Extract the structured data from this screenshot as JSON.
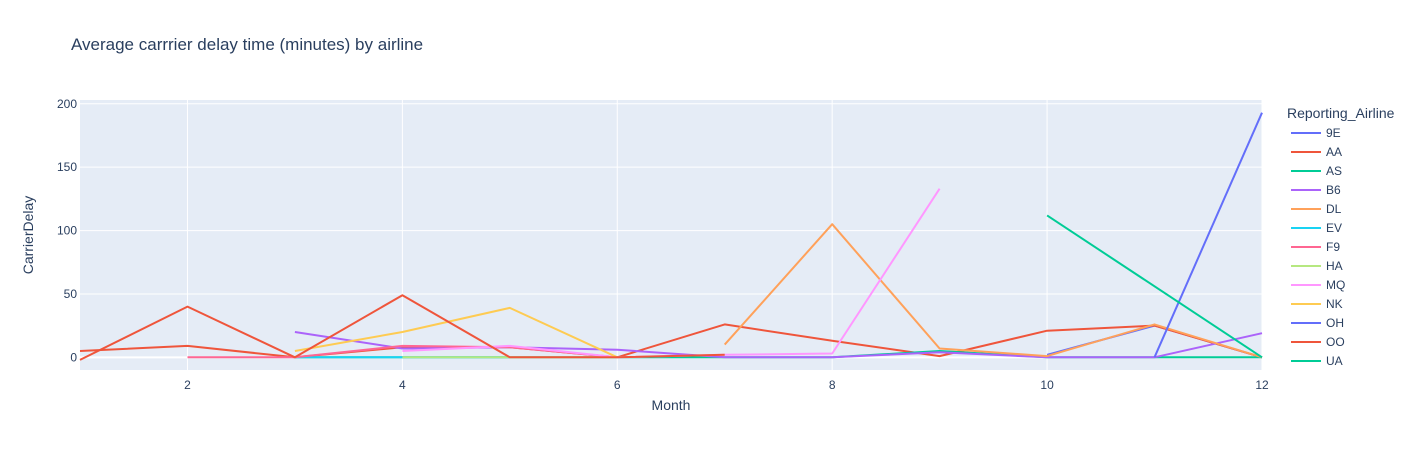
{
  "chart_data": {
    "type": "line",
    "title": "Average carrrier delay time (minutes) by airline",
    "xlabel": "Month",
    "ylabel": "CarrierDelay",
    "xlim": [
      1,
      12
    ],
    "ylim": [
      -10,
      203
    ],
    "xticks": [
      2,
      4,
      6,
      8,
      10,
      12
    ],
    "yticks": [
      0,
      50,
      100,
      150,
      200
    ],
    "grid": true,
    "legend_title": "Reporting_Airline",
    "legend_position": "right",
    "series": [
      {
        "name": "9E",
        "color": "#636efa",
        "points": [
          [
            10,
            2
          ],
          [
            11,
            25
          ],
          [
            12,
            0
          ]
        ]
      },
      {
        "name": "AA",
        "color": "#EF553B",
        "points": [
          [
            1,
            5
          ],
          [
            2,
            9
          ],
          [
            3,
            0
          ],
          [
            4,
            8
          ],
          [
            5,
            8
          ],
          [
            6,
            0
          ],
          [
            7,
            26
          ],
          [
            8,
            13
          ],
          [
            9,
            1
          ],
          [
            10,
            21
          ],
          [
            11,
            25
          ],
          [
            12,
            0
          ]
        ]
      },
      {
        "name": "AS",
        "color": "#00cc96",
        "points": [
          [
            3,
            0
          ],
          [
            4,
            0
          ],
          [
            5,
            0
          ],
          [
            6,
            0
          ],
          [
            7,
            0
          ],
          [
            8,
            0
          ],
          [
            9,
            5
          ],
          [
            10,
            0
          ],
          [
            11,
            0
          ],
          [
            12,
            0
          ]
        ]
      },
      {
        "name": "B6",
        "color": "#ab63fa",
        "points": [
          [
            3,
            20
          ],
          [
            4,
            7
          ],
          [
            5,
            8
          ],
          [
            6,
            6
          ],
          [
            7,
            0
          ],
          [
            8,
            0
          ],
          [
            9,
            4
          ],
          [
            10,
            0
          ],
          [
            11,
            0
          ],
          [
            12,
            19
          ]
        ]
      },
      {
        "name": "DL",
        "color": "#FFA15A",
        "points": [
          [
            7,
            10
          ],
          [
            8,
            105
          ],
          [
            9,
            7
          ],
          [
            10,
            1
          ],
          [
            11,
            26
          ],
          [
            12,
            0
          ]
        ]
      },
      {
        "name": "EV",
        "color": "#19d3f3",
        "points": [
          [
            3,
            0
          ],
          [
            4,
            0
          ],
          [
            5,
            0
          ]
        ]
      },
      {
        "name": "F9",
        "color": "#FF6692",
        "points": [
          [
            2,
            0
          ],
          [
            3,
            0
          ],
          [
            4,
            9
          ],
          [
            5,
            8
          ],
          [
            6,
            0
          ]
        ]
      },
      {
        "name": "HA",
        "color": "#B6E880",
        "points": [
          [
            4,
            0
          ],
          [
            5,
            0
          ],
          [
            6,
            0
          ]
        ]
      },
      {
        "name": "MQ",
        "color": "#FF97FF",
        "points": [
          [
            4,
            5
          ],
          [
            5,
            9
          ],
          [
            6,
            0
          ],
          [
            7,
            2
          ],
          [
            8,
            3
          ],
          [
            9,
            133
          ]
        ]
      },
      {
        "name": "NK",
        "color": "#FECB52",
        "points": [
          [
            3,
            5
          ],
          [
            4,
            20
          ],
          [
            5,
            39
          ],
          [
            6,
            0
          ]
        ]
      },
      {
        "name": "OH",
        "color": "#636efa",
        "points": [
          [
            11,
            0
          ],
          [
            12,
            193
          ]
        ]
      },
      {
        "name": "OO",
        "color": "#EF553B",
        "points": [
          [
            1,
            -2
          ],
          [
            2,
            40
          ],
          [
            3,
            0
          ],
          [
            4,
            49
          ],
          [
            5,
            0
          ],
          [
            6,
            0
          ],
          [
            7,
            2
          ]
        ]
      },
      {
        "name": "UA",
        "color": "#00cc96",
        "points": [
          [
            10,
            112
          ],
          [
            12,
            0
          ]
        ]
      }
    ]
  }
}
